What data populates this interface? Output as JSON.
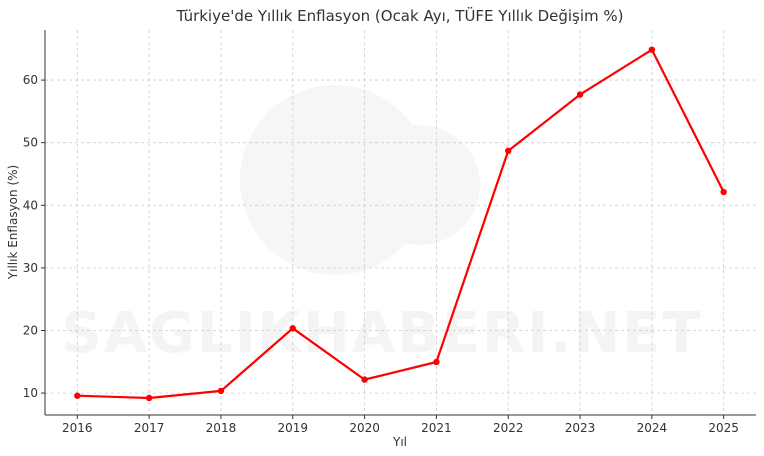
{
  "watermark": {
    "text": "SAGLIKHABERI.NET"
  },
  "chart_data": {
    "type": "line",
    "title": "Türkiye'de Yıllık Enflasyon (Ocak Ayı, TÜFE Yıllık Değişim %)",
    "xlabel": "Yıl",
    "ylabel": "Yıllık Enflasyon (%)",
    "x": [
      2016,
      2017,
      2018,
      2019,
      2020,
      2021,
      2022,
      2023,
      2024,
      2025
    ],
    "series": [
      {
        "values": [
          9.58,
          9.22,
          10.35,
          20.35,
          12.15,
          14.97,
          48.69,
          57.68,
          64.86,
          42.12
        ]
      }
    ],
    "xlim": [
      2015.55,
      2025.45
    ],
    "ylim": [
      6.5,
      68.0
    ],
    "yticks": [
      10,
      20,
      30,
      40,
      50,
      60
    ],
    "grid": true,
    "line_color": "#ff0000"
  }
}
